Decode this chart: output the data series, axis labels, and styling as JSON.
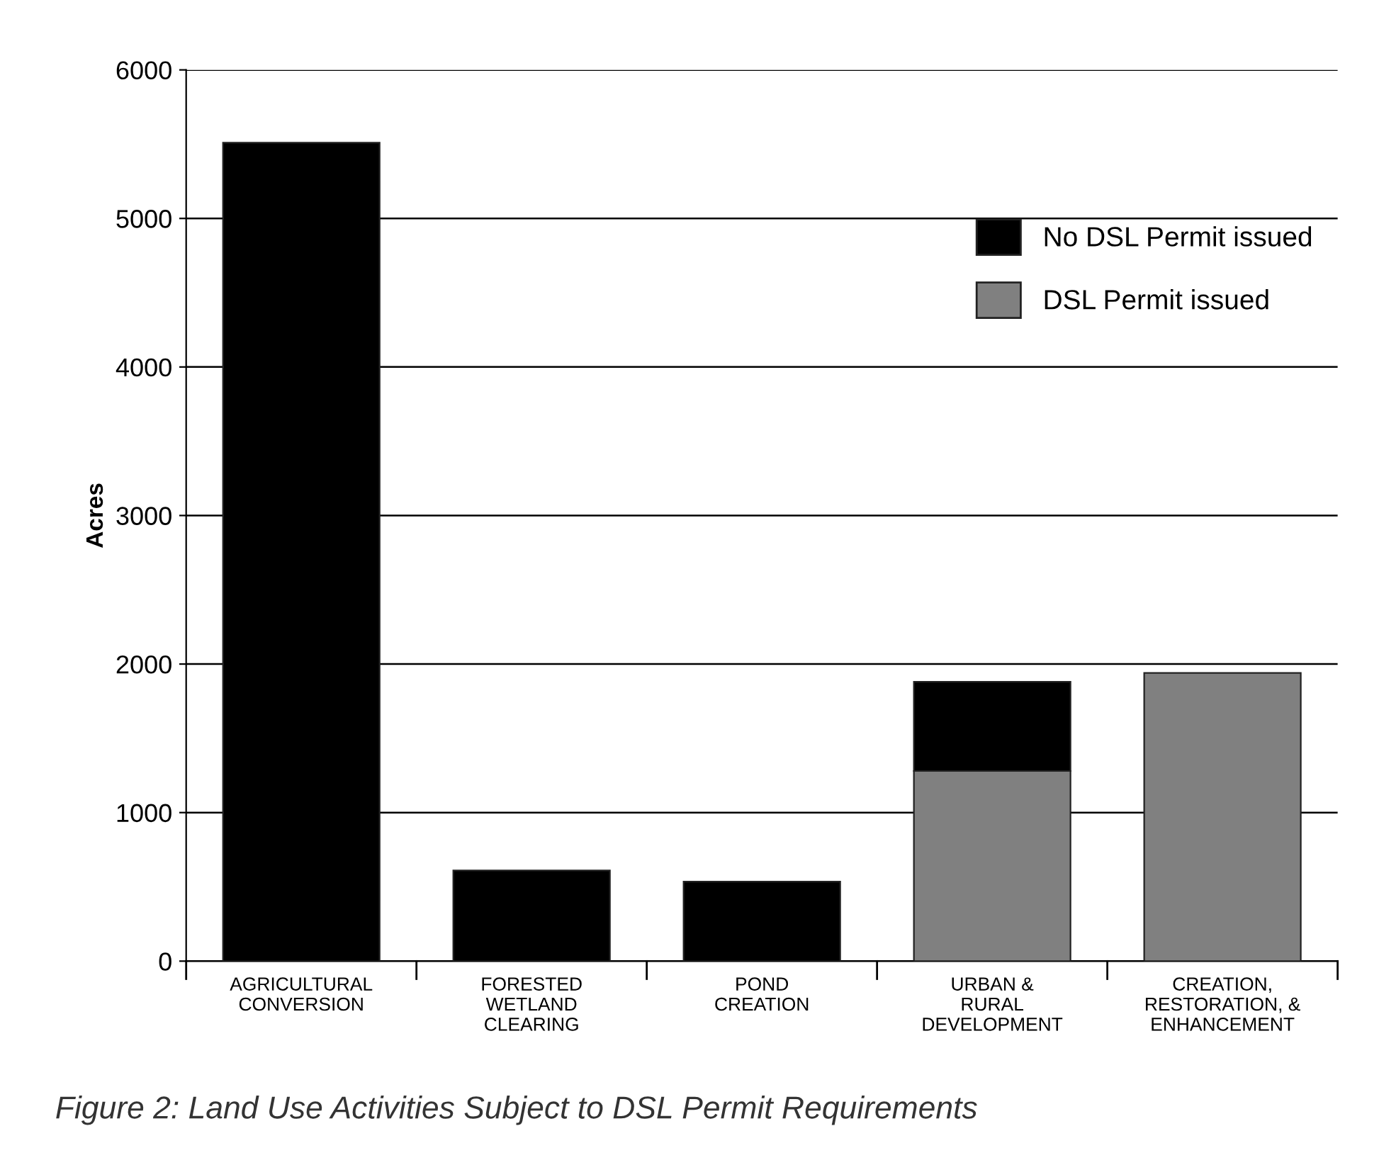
{
  "chart_data": {
    "type": "bar",
    "stacked": true,
    "ylabel": "Acres",
    "categories": [
      "AGRICULTURAL\nCONVERSION",
      "FORESTED\nWETLAND\nCLEARING",
      "POND\nCREATION",
      "URBAN &\nRURAL\nDEVELOPMENT",
      "CREATION,\nRESTORATION, &\nENHANCEMENT"
    ],
    "series": [
      {
        "name": "DSL Permit issued",
        "color": "#808080",
        "values": [
          0,
          0,
          0,
          1280,
          1940
        ]
      },
      {
        "name": "No DSL Permit issued",
        "color": "#000000",
        "values": [
          5510,
          610,
          535,
          600,
          0
        ]
      }
    ],
    "ylim": [
      0,
      6000
    ],
    "yticks": [
      0,
      1000,
      2000,
      3000,
      4000,
      5000,
      6000
    ],
    "grid": "y",
    "legend": "top right",
    "annotations": [
      "Figure 2: Land Use Activities Subject to DSL Permit Requirements"
    ]
  }
}
